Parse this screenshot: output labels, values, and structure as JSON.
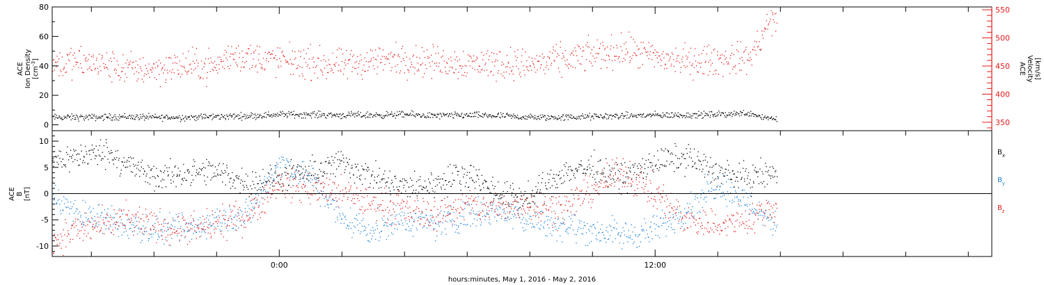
{
  "colors": {
    "black": "#000000",
    "red": "#e21a1a",
    "blue": "#1a7fd6"
  },
  "xaxis": {
    "label": "hours:minutes, May  1, 2016 - May  2, 2016",
    "tick_labels": [
      {
        "hour": 0,
        "text": "0:00"
      },
      {
        "hour": 12,
        "text": "12:00"
      }
    ],
    "range_hours": [
      -7.25,
      22.75
    ],
    "minor_tick_hours": [
      -6,
      -4,
      -2,
      0,
      2,
      4,
      6,
      8,
      10,
      12,
      14,
      16,
      18,
      20,
      22
    ],
    "data_end_hour": 15.9
  },
  "chart_data": [
    {
      "type": "scatter",
      "panel": "plasma",
      "ylabel_left": [
        "ACE",
        "Ion Density",
        "[cm^-3]"
      ],
      "ylabel_right": [
        "ACE",
        "Velocity",
        "[km/s]"
      ],
      "ylim_left": [
        -4,
        80
      ],
      "yticks_left": [
        0,
        20,
        40,
        60,
        80
      ],
      "ylim_right": [
        335,
        555
      ],
      "yticks_right": [
        350,
        400,
        450,
        500,
        550
      ],
      "series": [
        {
          "axis": "left",
          "color": "black",
          "jitter": 1.1,
          "x": [
            -7.25,
            -6,
            -5,
            -4,
            -3,
            -2,
            -1,
            0,
            1,
            2,
            3,
            4,
            5,
            6,
            7,
            8,
            9,
            10,
            11,
            12,
            13,
            14,
            15,
            15.5,
            15.9
          ],
          "y": [
            5,
            5,
            5.5,
            5,
            5,
            5.5,
            6,
            7,
            7,
            6.5,
            6.5,
            7,
            6,
            6.5,
            6,
            5,
            5,
            5.5,
            6,
            6.5,
            6.5,
            7,
            8,
            5,
            4
          ]
        },
        {
          "axis": "right",
          "color": "red",
          "jitter": 14,
          "x": [
            -7.25,
            -6,
            -5,
            -4,
            -3,
            -2,
            -1.5,
            -1,
            0,
            1,
            2,
            3,
            4,
            5,
            6,
            7,
            8,
            9,
            10,
            11,
            12,
            13,
            14,
            15,
            15.3,
            15.6,
            15.9
          ],
          "y": [
            455,
            455,
            445,
            445,
            450,
            450,
            470,
            465,
            460,
            455,
            450,
            460,
            462,
            458,
            455,
            455,
            452,
            460,
            470,
            478,
            465,
            458,
            460,
            465,
            490,
            525,
            532
          ]
        }
      ]
    },
    {
      "type": "scatter",
      "panel": "magnetic",
      "ylabel_left": [
        "ACE",
        "B",
        "[nT]"
      ],
      "ylim": [
        -12,
        12
      ],
      "yticks": [
        -10,
        -5,
        0,
        5,
        10
      ],
      "zero_line": true,
      "series": [
        {
          "name": "B_x",
          "color": "black",
          "jitter": 1.3,
          "x": [
            -7.25,
            -6.5,
            -5.5,
            -5,
            -4,
            -3,
            -2,
            -1,
            0,
            1,
            2,
            3,
            4,
            5,
            6,
            7,
            8,
            9,
            10,
            11,
            12,
            13,
            14,
            15,
            15.9
          ],
          "y": [
            6.5,
            7,
            8,
            6,
            3,
            4,
            4,
            2,
            3,
            4,
            6,
            3,
            1,
            2,
            4,
            0,
            -1,
            4,
            5,
            3,
            6,
            7,
            4,
            3,
            4
          ]
        },
        {
          "name": "B_y",
          "color": "blue",
          "jitter": 1.4,
          "x": [
            -7.25,
            -6.5,
            -5.5,
            -5,
            -4,
            -3,
            -2,
            -1,
            0,
            1,
            2,
            3,
            4,
            5,
            6,
            7,
            8,
            9,
            10,
            11,
            12,
            13,
            14,
            15,
            15.9
          ],
          "y": [
            0,
            -4,
            -5,
            -6,
            -7,
            -7,
            -5,
            -4,
            6,
            3,
            -5,
            -7,
            -5,
            -6,
            -4,
            -3,
            -5,
            -6,
            -7,
            -8,
            -7,
            -3,
            2,
            -2,
            -6
          ]
        },
        {
          "name": "B_z",
          "color": "red",
          "jitter": 1.5,
          "x": [
            -7.25,
            -6.5,
            -5.5,
            -5,
            -4,
            -3,
            -2,
            -1,
            0,
            1,
            2,
            3,
            4,
            5,
            6,
            7,
            8,
            9,
            10,
            11,
            12,
            13,
            14,
            15,
            15.9
          ],
          "y": [
            -9,
            -7,
            -6,
            -5,
            -6,
            -7,
            -6,
            -4,
            2,
            1,
            0,
            -2,
            -3,
            -4,
            -2,
            -3,
            -2,
            -3,
            1,
            4,
            0,
            -5,
            -6,
            -5,
            -2
          ]
        }
      ]
    }
  ]
}
